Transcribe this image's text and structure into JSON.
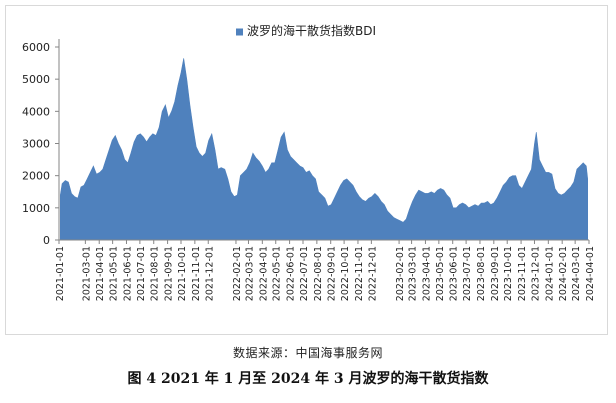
{
  "source_note": "数据来源：中国海事服务网",
  "figure_caption": "图 4  2021 年 1 月至 2024 年 3 月波罗的海干散货指数",
  "chart_data": {
    "type": "area",
    "title": "",
    "xlabel": "",
    "ylabel": "",
    "ylim": [
      0,
      6000
    ],
    "yticks": [
      0,
      1000,
      2000,
      3000,
      4000,
      5000,
      6000
    ],
    "grid": false,
    "legend_position": "top-center",
    "series_color": "#4f81bd",
    "x_tick_labels": [
      "2021-01-01",
      "2021-03-01",
      "2021-04-01",
      "2021-05-01",
      "2021-06-01",
      "2021-07-01",
      "2021-08-01",
      "2021-09-01",
      "2021-10-01",
      "2021-11-01",
      "2021-12-01",
      "2022-02-01",
      "2022-03-01",
      "2022-04-01",
      "2022-05-01",
      "2022-06-01",
      "2022-07-01",
      "2022-08-01",
      "2022-09-01",
      "2022-10-01",
      "2022-11-01",
      "2022-12-01",
      "2023-02-01",
      "2023-03-01",
      "2023-04-01",
      "2023-05-01",
      "2023-06-01",
      "2023-07-01",
      "2023-08-01",
      "2023-09-01",
      "2023-10-01",
      "2023-11-01",
      "2023-12-01",
      "2024-01-01",
      "2024-02-01",
      "2024-03-01",
      "2024-04-01"
    ],
    "series": [
      {
        "name": "波罗的海干散货指数BDI",
        "points": [
          [
            "2021-01-04",
            1400
          ],
          [
            "2021-01-08",
            1750
          ],
          [
            "2021-01-15",
            1850
          ],
          [
            "2021-01-22",
            1800
          ],
          [
            "2021-01-29",
            1450
          ],
          [
            "2021-02-05",
            1350
          ],
          [
            "2021-02-12",
            1300
          ],
          [
            "2021-02-19",
            1650
          ],
          [
            "2021-02-26",
            1700
          ],
          [
            "2021-03-05",
            1900
          ],
          [
            "2021-03-12",
            2100
          ],
          [
            "2021-03-19",
            2300
          ],
          [
            "2021-03-26",
            2050
          ],
          [
            "2021-04-02",
            2100
          ],
          [
            "2021-04-09",
            2200
          ],
          [
            "2021-04-16",
            2500
          ],
          [
            "2021-04-23",
            2800
          ],
          [
            "2021-04-30",
            3100
          ],
          [
            "2021-05-07",
            3250
          ],
          [
            "2021-05-14",
            3000
          ],
          [
            "2021-05-21",
            2800
          ],
          [
            "2021-05-28",
            2500
          ],
          [
            "2021-06-04",
            2400
          ],
          [
            "2021-06-11",
            2700
          ],
          [
            "2021-06-18",
            3050
          ],
          [
            "2021-06-25",
            3250
          ],
          [
            "2021-07-02",
            3300
          ],
          [
            "2021-07-09",
            3200
          ],
          [
            "2021-07-16",
            3050
          ],
          [
            "2021-07-23",
            3200
          ],
          [
            "2021-07-30",
            3300
          ],
          [
            "2021-08-06",
            3250
          ],
          [
            "2021-08-13",
            3500
          ],
          [
            "2021-08-20",
            4000
          ],
          [
            "2021-08-27",
            4200
          ],
          [
            "2021-09-03",
            3800
          ],
          [
            "2021-09-10",
            4000
          ],
          [
            "2021-09-17",
            4300
          ],
          [
            "2021-09-24",
            4800
          ],
          [
            "2021-10-01",
            5200
          ],
          [
            "2021-10-07",
            5650
          ],
          [
            "2021-10-14",
            5000
          ],
          [
            "2021-10-21",
            4200
          ],
          [
            "2021-10-28",
            3500
          ],
          [
            "2021-11-04",
            2900
          ],
          [
            "2021-11-11",
            2700
          ],
          [
            "2021-11-18",
            2600
          ],
          [
            "2021-11-25",
            2700
          ],
          [
            "2021-12-02",
            3100
          ],
          [
            "2021-12-09",
            3300
          ],
          [
            "2021-12-16",
            2800
          ],
          [
            "2021-12-23",
            2200
          ],
          [
            "2021-12-30",
            2250
          ],
          [
            "2022-01-07",
            2200
          ],
          [
            "2022-01-14",
            1900
          ],
          [
            "2022-01-21",
            1500
          ],
          [
            "2022-01-28",
            1350
          ],
          [
            "2022-02-04",
            1400
          ],
          [
            "2022-02-11",
            2000
          ],
          [
            "2022-02-18",
            2100
          ],
          [
            "2022-02-25",
            2200
          ],
          [
            "2022-03-04",
            2400
          ],
          [
            "2022-03-11",
            2700
          ],
          [
            "2022-03-18",
            2550
          ],
          [
            "2022-03-25",
            2450
          ],
          [
            "2022-04-01",
            2300
          ],
          [
            "2022-04-08",
            2100
          ],
          [
            "2022-04-15",
            2200
          ],
          [
            "2022-04-22",
            2400
          ],
          [
            "2022-04-29",
            2400
          ],
          [
            "2022-05-06",
            2800
          ],
          [
            "2022-05-13",
            3200
          ],
          [
            "2022-05-20",
            3350
          ],
          [
            "2022-05-27",
            2800
          ],
          [
            "2022-06-03",
            2600
          ],
          [
            "2022-06-10",
            2500
          ],
          [
            "2022-06-17",
            2400
          ],
          [
            "2022-06-24",
            2300
          ],
          [
            "2022-07-01",
            2250
          ],
          [
            "2022-07-08",
            2100
          ],
          [
            "2022-07-15",
            2150
          ],
          [
            "2022-07-22",
            2000
          ],
          [
            "2022-07-29",
            1900
          ],
          [
            "2022-08-05",
            1500
          ],
          [
            "2022-08-12",
            1400
          ],
          [
            "2022-08-19",
            1300
          ],
          [
            "2022-08-26",
            1050
          ],
          [
            "2022-09-02",
            1100
          ],
          [
            "2022-09-09",
            1300
          ],
          [
            "2022-09-16",
            1500
          ],
          [
            "2022-09-23",
            1700
          ],
          [
            "2022-09-30",
            1850
          ],
          [
            "2022-10-07",
            1900
          ],
          [
            "2022-10-14",
            1800
          ],
          [
            "2022-10-21",
            1700
          ],
          [
            "2022-10-28",
            1500
          ],
          [
            "2022-11-04",
            1350
          ],
          [
            "2022-11-11",
            1250
          ],
          [
            "2022-11-18",
            1200
          ],
          [
            "2022-11-25",
            1300
          ],
          [
            "2022-12-02",
            1350
          ],
          [
            "2022-12-09",
            1450
          ],
          [
            "2022-12-16",
            1350
          ],
          [
            "2022-12-23",
            1200
          ],
          [
            "2022-12-30",
            1100
          ],
          [
            "2023-01-06",
            900
          ],
          [
            "2023-01-13",
            800
          ],
          [
            "2023-01-20",
            700
          ],
          [
            "2023-01-27",
            650
          ],
          [
            "2023-02-03",
            600
          ],
          [
            "2023-02-10",
            550
          ],
          [
            "2023-02-17",
            650
          ],
          [
            "2023-02-24",
            950
          ],
          [
            "2023-03-03",
            1200
          ],
          [
            "2023-03-10",
            1400
          ],
          [
            "2023-03-17",
            1550
          ],
          [
            "2023-03-24",
            1500
          ],
          [
            "2023-03-31",
            1450
          ],
          [
            "2023-04-07",
            1450
          ],
          [
            "2023-04-14",
            1500
          ],
          [
            "2023-04-21",
            1450
          ],
          [
            "2023-04-28",
            1550
          ],
          [
            "2023-05-05",
            1600
          ],
          [
            "2023-05-12",
            1550
          ],
          [
            "2023-05-19",
            1400
          ],
          [
            "2023-05-26",
            1300
          ],
          [
            "2023-06-02",
            1000
          ],
          [
            "2023-06-09",
            1000
          ],
          [
            "2023-06-16",
            1100
          ],
          [
            "2023-06-23",
            1150
          ],
          [
            "2023-06-30",
            1100
          ],
          [
            "2023-07-07",
            1000
          ],
          [
            "2023-07-14",
            1050
          ],
          [
            "2023-07-21",
            1100
          ],
          [
            "2023-07-28",
            1050
          ],
          [
            "2023-08-04",
            1150
          ],
          [
            "2023-08-11",
            1150
          ],
          [
            "2023-08-18",
            1200
          ],
          [
            "2023-08-25",
            1100
          ],
          [
            "2023-09-01",
            1150
          ],
          [
            "2023-09-08",
            1300
          ],
          [
            "2023-09-15",
            1500
          ],
          [
            "2023-09-22",
            1700
          ],
          [
            "2023-09-29",
            1800
          ],
          [
            "2023-10-06",
            1950
          ],
          [
            "2023-10-13",
            2000
          ],
          [
            "2023-10-20",
            2000
          ],
          [
            "2023-10-27",
            1700
          ],
          [
            "2023-11-03",
            1600
          ],
          [
            "2023-11-10",
            1800
          ],
          [
            "2023-11-17",
            2000
          ],
          [
            "2023-11-24",
            2200
          ],
          [
            "2023-12-01",
            3000
          ],
          [
            "2023-12-05",
            3350
          ],
          [
            "2023-12-12",
            2500
          ],
          [
            "2023-12-19",
            2300
          ],
          [
            "2023-12-26",
            2100
          ],
          [
            "2024-01-02",
            2100
          ],
          [
            "2024-01-09",
            2050
          ],
          [
            "2024-01-16",
            1600
          ],
          [
            "2024-01-23",
            1450
          ],
          [
            "2024-01-30",
            1400
          ],
          [
            "2024-02-06",
            1450
          ],
          [
            "2024-02-13",
            1550
          ],
          [
            "2024-02-20",
            1650
          ],
          [
            "2024-02-27",
            1800
          ],
          [
            "2024-03-05",
            2200
          ],
          [
            "2024-03-12",
            2300
          ],
          [
            "2024-03-19",
            2400
          ],
          [
            "2024-03-26",
            2300
          ],
          [
            "2024-03-29",
            1900
          ]
        ]
      }
    ]
  }
}
